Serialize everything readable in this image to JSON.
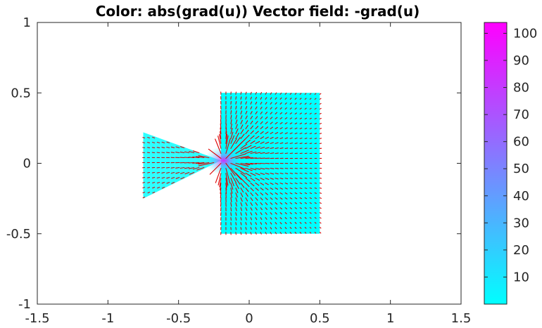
{
  "chart_data": {
    "type": "vector-field",
    "title": "Color: abs(grad(u))  Vector field: -grad(u)",
    "xlim": [
      -1.5,
      1.5
    ],
    "ylim": [
      -1,
      1
    ],
    "x_ticks": [
      -1.5,
      -1,
      -0.5,
      0,
      0.5,
      1,
      1.5
    ],
    "x_tick_labels": [
      "-1.5",
      "-1",
      "-0.5",
      "0",
      "0.5",
      "1",
      "1.5"
    ],
    "y_ticks": [
      -1,
      -0.5,
      0,
      0.5,
      1
    ],
    "y_tick_labels": [
      "-1",
      "-0.5",
      "0",
      "0.5",
      "1"
    ],
    "grid": false,
    "geometry": {
      "triangle": [
        [
          -0.75,
          0.22
        ],
        [
          -0.75,
          -0.25
        ],
        [
          -0.2,
          0.02
        ]
      ],
      "square": {
        "x": [
          -0.2,
          0.5
        ],
        "y": [
          -0.5,
          0.5
        ]
      },
      "singular_point": [
        -0.18,
        0.02
      ]
    },
    "field_color": "#00ffff",
    "vector_color": "#dd0000",
    "colorbar": {
      "min": 0,
      "max": 104,
      "ticks": [
        10,
        20,
        30,
        40,
        50,
        60,
        70,
        80,
        90,
        100
      ],
      "tick_labels": [
        "10",
        "20",
        "30",
        "40",
        "50",
        "60",
        "70",
        "80",
        "90",
        "100"
      ],
      "color_low": "#00ffff",
      "color_high": "#ff00ff",
      "placement": "right"
    }
  }
}
